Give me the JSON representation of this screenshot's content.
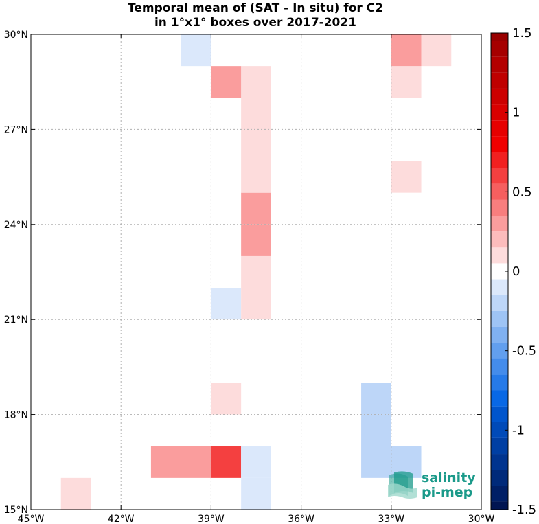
{
  "chart_data": {
    "type": "heatmap",
    "title": "Temporal mean of (SAT - In situ) for C2",
    "subtitle": "in 1°x1° boxes over 2017-2021",
    "xlim": [
      -45,
      -30
    ],
    "ylim": [
      15,
      30
    ],
    "x_ticks": [
      -45,
      -42,
      -39,
      -36,
      -33,
      -30
    ],
    "x_tick_labels": [
      "45°W",
      "42°W",
      "39°W",
      "36°W",
      "33°W",
      "30°W"
    ],
    "y_ticks": [
      15,
      18,
      21,
      24,
      27,
      30
    ],
    "y_tick_labels": [
      "15°N",
      "18°N",
      "21°N",
      "24°N",
      "27°N",
      "30°N"
    ],
    "grid": true,
    "colorbar": {
      "range": [
        -1.5,
        1.5
      ],
      "ticks": [
        1.5,
        1,
        0.5,
        0,
        -0.5,
        -1,
        -1.5
      ],
      "tick_labels": [
        "1.5",
        "1",
        "0.5",
        "0",
        "-0.5",
        "-1",
        "-1.5"
      ],
      "colormap": "blue-white-red",
      "position": "right"
    },
    "cells": [
      {
        "lon": -44,
        "lat": 15,
        "value": 0.15
      },
      {
        "lon": -41,
        "lat": 16,
        "value": 0.25
      },
      {
        "lon": -40,
        "lat": 16,
        "value": 0.35
      },
      {
        "lon": -39,
        "lat": 16,
        "value": 0.55
      },
      {
        "lon": -38,
        "lat": 15,
        "value": -0.1
      },
      {
        "lon": -38,
        "lat": 16,
        "value": -0.1
      },
      {
        "lon": -39,
        "lat": 18,
        "value": 0.15
      },
      {
        "lon": -39,
        "lat": 21,
        "value": -0.1
      },
      {
        "lon": -38,
        "lat": 21,
        "value": 0.15
      },
      {
        "lon": -38,
        "lat": 22,
        "value": 0.15
      },
      {
        "lon": -38,
        "lat": 23,
        "value": 0.25
      },
      {
        "lon": -38,
        "lat": 24,
        "value": 0.25
      },
      {
        "lon": -38,
        "lat": 25,
        "value": 0.15
      },
      {
        "lon": -38,
        "lat": 26,
        "value": 0.15
      },
      {
        "lon": -38,
        "lat": 27,
        "value": 0.15
      },
      {
        "lon": -38,
        "lat": 28,
        "value": 0.15
      },
      {
        "lon": -39,
        "lat": 28,
        "value": 0.25
      },
      {
        "lon": -40,
        "lat": 29,
        "value": -0.1
      },
      {
        "lon": -34,
        "lat": 16,
        "value": -0.2
      },
      {
        "lon": -34,
        "lat": 17,
        "value": -0.2
      },
      {
        "lon": -34,
        "lat": 18,
        "value": -0.2
      },
      {
        "lon": -33,
        "lat": 16,
        "value": -0.2
      },
      {
        "lon": -33,
        "lat": 25,
        "value": 0.15
      },
      {
        "lon": -33,
        "lat": 28,
        "value": 0.15
      },
      {
        "lon": -33,
        "lat": 29,
        "value": 0.25
      },
      {
        "lon": -32,
        "lat": 29,
        "value": 0.15
      }
    ]
  },
  "logo": {
    "line1": "salinity",
    "line2": "pi-mep",
    "color": "#1b9a8a"
  }
}
